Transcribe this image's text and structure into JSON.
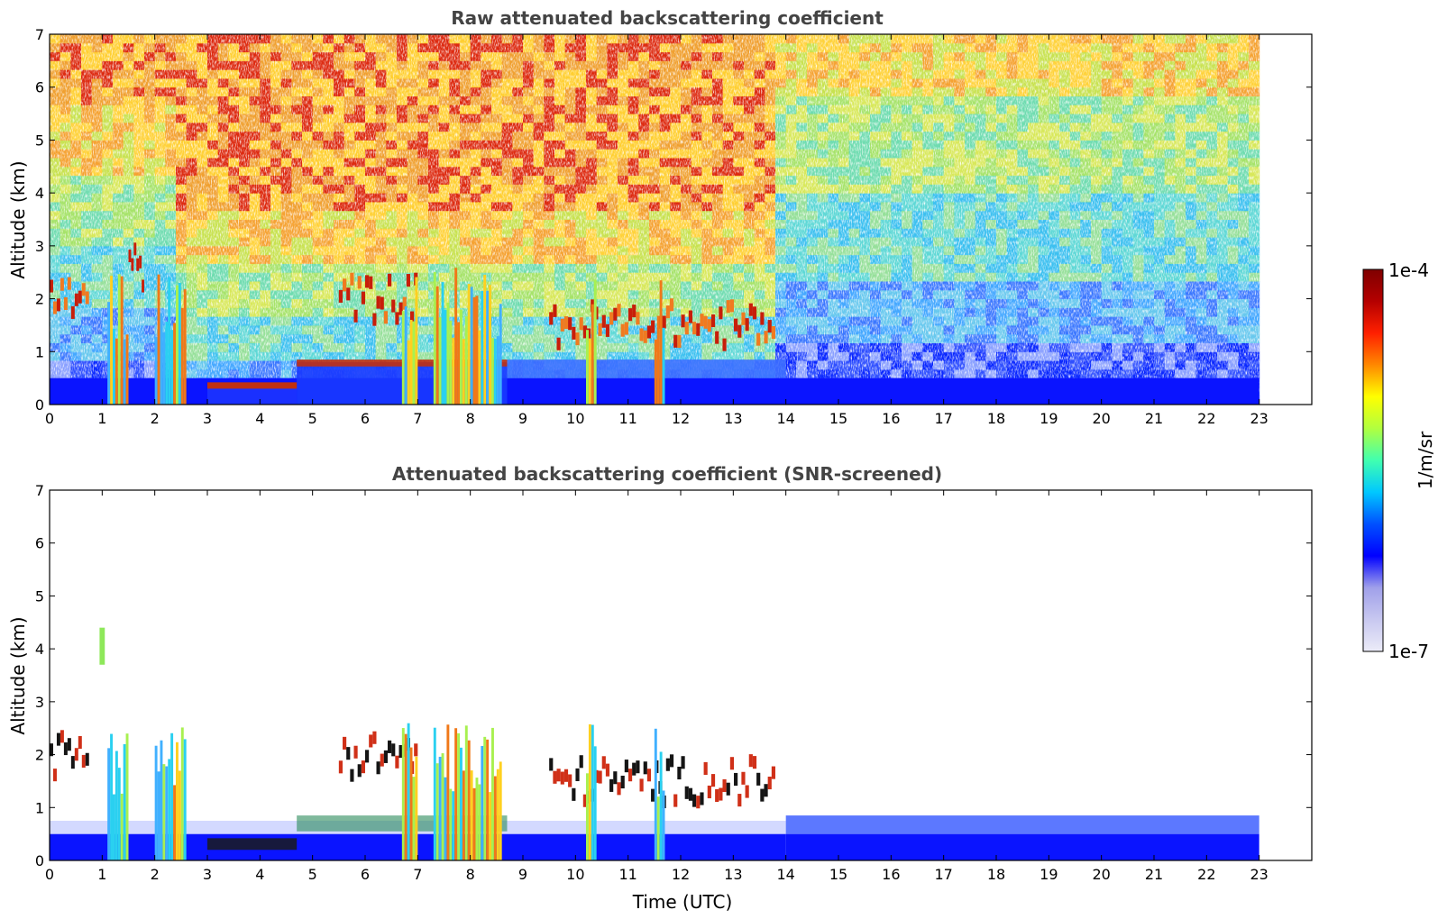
{
  "chart_data": [
    {
      "type": "heatmap",
      "title": "Raw attenuated backscattering coefficient",
      "xlabel": "",
      "ylabel": "Altitude (km)",
      "xlim": [
        0,
        24
      ],
      "ylim": [
        0,
        7
      ],
      "xticks": [
        0,
        1,
        2,
        3,
        4,
        5,
        6,
        7,
        8,
        9,
        10,
        11,
        12,
        13,
        14,
        15,
        16,
        17,
        18,
        19,
        20,
        21,
        22,
        23
      ],
      "yticks": [
        0,
        1,
        2,
        3,
        4,
        5,
        6,
        7
      ],
      "data_time_range": [
        0,
        23
      ],
      "features": {
        "surface_layer_top_km": 0.5,
        "aerosol_layer_top_km": {
          "0-3": 0.5,
          "3-4.7": 0.35,
          "4.7-8.7": 0.8
        },
        "cloud_bases_km": [
          {
            "time": [
              0,
              0.75
            ],
            "altitude": 2.0
          },
          {
            "time": [
              1.5,
              1.8
            ],
            "altitude": 2.6
          },
          {
            "time": [
              5.5,
              7.0
            ],
            "altitude": 2.0
          },
          {
            "time": [
              9.5,
              13.8
            ],
            "altitude": 1.5
          }
        ],
        "precipitation_shafts": [
          {
            "time": [
              1.1,
              1.5
            ]
          },
          {
            "time": [
              2.0,
              2.6
            ]
          },
          {
            "time": [
              6.7,
              7.0
            ]
          },
          {
            "time": [
              7.3,
              8.6
            ]
          },
          {
            "time": [
              10.2,
              10.4
            ]
          },
          {
            "time": [
              11.5,
              11.7
            ]
          }
        ],
        "high_noise_period": [
          2.5,
          13.8
        ]
      }
    },
    {
      "type": "heatmap",
      "title": "Attenuated backscattering coefficient (SNR-screened)",
      "xlabel": "Time (UTC)",
      "ylabel": "Altitude (km)",
      "xlim": [
        0,
        24
      ],
      "ylim": [
        0,
        7
      ],
      "xticks": [
        0,
        1,
        2,
        3,
        4,
        5,
        6,
        7,
        8,
        9,
        10,
        11,
        12,
        13,
        14,
        15,
        16,
        17,
        18,
        19,
        20,
        21,
        22,
        23
      ],
      "yticks": [
        0,
        1,
        2,
        3,
        4,
        5,
        6,
        7
      ],
      "data_time_range": [
        0,
        23
      ],
      "features": {
        "boundary_layer_top_km": {
          "0-14": 0.5,
          "14-23": 0.85
        },
        "cloud_bases_km": [
          {
            "time": [
              0,
              0.75
            ],
            "altitude": 2.0
          },
          {
            "time": [
              5.5,
              7.0
            ],
            "altitude": 2.0
          },
          {
            "time": [
              9.5,
              13.8
            ],
            "altitude": 1.5
          }
        ],
        "isolated_feature": {
          "time": 1.0,
          "altitude": [
            3.7,
            4.4
          ]
        }
      }
    }
  ],
  "colorbar": {
    "label": "1/m/sr",
    "max_label": "1e-4",
    "min_label": "1e-7",
    "scale": "log",
    "range": [
      1e-07,
      0.0001
    ],
    "colormap": "jet",
    "stops": [
      "#ececf8",
      "#c8c8f0",
      "#a0a0ea",
      "#0000ff",
      "#0050ff",
      "#00c8ff",
      "#40ffb0",
      "#b0ff40",
      "#ffff00",
      "#ff8800",
      "#ff2000",
      "#b40000",
      "#7f0000"
    ]
  }
}
